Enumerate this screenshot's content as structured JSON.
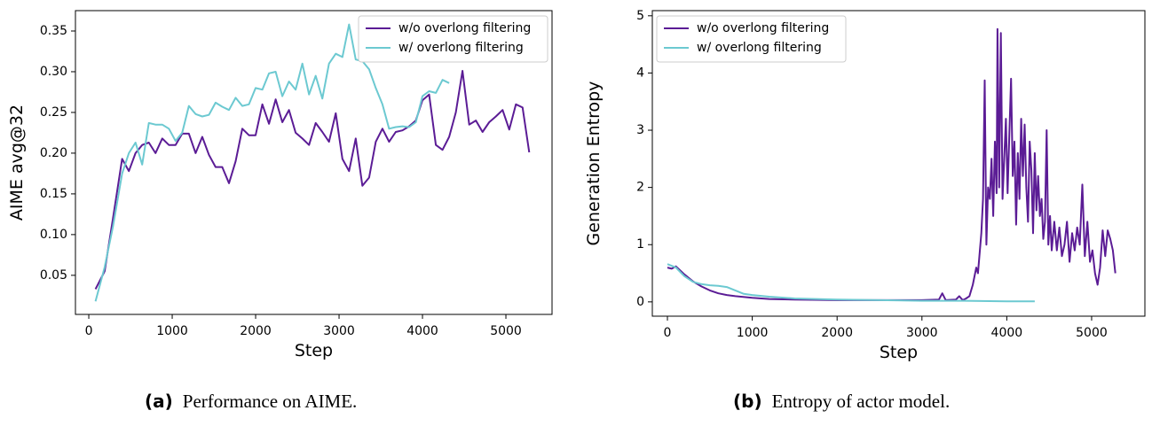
{
  "chart_data": [
    {
      "type": "line",
      "xlabel": "Step",
      "ylabel": "AIME avg@32",
      "caption_tag": "(a)",
      "caption": "Performance on AIME.",
      "xlim": [
        -160,
        5553
      ],
      "ylim": [
        0.002,
        0.375
      ],
      "xticks": [
        0,
        1000,
        2000,
        3000,
        4000,
        5000
      ],
      "yticks": [
        0.05,
        0.1,
        0.15,
        0.2,
        0.25,
        0.3,
        0.35
      ],
      "ytick_labels": [
        "0.05",
        "0.10",
        "0.15",
        "0.20",
        "0.25",
        "0.30",
        "0.35"
      ],
      "legend": "upper right",
      "series": [
        {
          "name": "w/o overlong filtering",
          "color": "#5b1c95",
          "x": [
            80,
            190,
            290,
            400,
            480,
            560,
            640,
            720,
            800,
            880,
            960,
            1040,
            1120,
            1200,
            1280,
            1360,
            1440,
            1520,
            1600,
            1680,
            1760,
            1840,
            1920,
            2000,
            2080,
            2160,
            2240,
            2320,
            2400,
            2480,
            2560,
            2640,
            2720,
            2800,
            2880,
            2960,
            3040,
            3120,
            3200,
            3280,
            3360,
            3440,
            3520,
            3600,
            3680,
            3760,
            3840,
            3920,
            4000,
            4080,
            4160,
            4240,
            4320,
            4400,
            4480,
            4560,
            4640,
            4720,
            4800,
            4880,
            4960,
            5040,
            5120,
            5200,
            5280
          ],
          "values": [
            0.033,
            0.055,
            0.12,
            0.193,
            0.178,
            0.2,
            0.21,
            0.213,
            0.2,
            0.218,
            0.21,
            0.21,
            0.224,
            0.224,
            0.2,
            0.22,
            0.198,
            0.183,
            0.183,
            0.163,
            0.19,
            0.23,
            0.222,
            0.222,
            0.26,
            0.236,
            0.266,
            0.238,
            0.253,
            0.225,
            0.218,
            0.21,
            0.237,
            0.226,
            0.214,
            0.249,
            0.193,
            0.178,
            0.218,
            0.16,
            0.17,
            0.214,
            0.23,
            0.214,
            0.226,
            0.228,
            0.233,
            0.24,
            0.265,
            0.272,
            0.21,
            0.204,
            0.22,
            0.25,
            0.301,
            0.235,
            0.24,
            0.226,
            0.238,
            0.245,
            0.253,
            0.229,
            0.26,
            0.256,
            0.201
          ]
        },
        {
          "name": "w/ overlong filtering",
          "color": "#6cc9d1",
          "x": [
            80,
            190,
            290,
            400,
            480,
            560,
            640,
            720,
            800,
            880,
            960,
            1040,
            1120,
            1200,
            1280,
            1360,
            1440,
            1520,
            1600,
            1680,
            1760,
            1840,
            1920,
            2000,
            2080,
            2160,
            2240,
            2320,
            2400,
            2480,
            2560,
            2640,
            2720,
            2800,
            2880,
            2960,
            3040,
            3120,
            3200,
            3280,
            3360,
            3440,
            3520,
            3600,
            3680,
            3760,
            3840,
            3920,
            4000,
            4080,
            4160,
            4240,
            4320
          ],
          "values": [
            0.018,
            0.06,
            0.11,
            0.175,
            0.2,
            0.213,
            0.186,
            0.237,
            0.235,
            0.235,
            0.23,
            0.215,
            0.225,
            0.258,
            0.248,
            0.245,
            0.247,
            0.262,
            0.257,
            0.253,
            0.268,
            0.258,
            0.26,
            0.28,
            0.278,
            0.298,
            0.3,
            0.27,
            0.288,
            0.278,
            0.31,
            0.272,
            0.295,
            0.267,
            0.31,
            0.322,
            0.318,
            0.358,
            0.315,
            0.313,
            0.303,
            0.28,
            0.26,
            0.23,
            0.232,
            0.233,
            0.232,
            0.238,
            0.27,
            0.276,
            0.274,
            0.29,
            0.286
          ]
        }
      ]
    },
    {
      "type": "line",
      "xlabel": "Step",
      "ylabel": "Generation Entropy",
      "caption_tag": "(b)",
      "caption": "Entropy of actor model.",
      "xlim": [
        -178,
        5628
      ],
      "ylim": [
        -0.25,
        5.09
      ],
      "xticks": [
        0,
        1000,
        2000,
        3000,
        4000,
        5000
      ],
      "yticks": [
        0,
        1,
        2,
        3,
        4,
        5
      ],
      "legend": "upper left",
      "series": [
        {
          "name": "w/o overlong filtering",
          "color": "#5b1c95",
          "x": [
            0,
            50,
            100,
            150,
            200,
            300,
            400,
            500,
            600,
            700,
            800,
            1000,
            1200,
            1500,
            2000,
            2500,
            3000,
            3200,
            3240,
            3280,
            3400,
            3440,
            3480,
            3520,
            3560,
            3600,
            3640,
            3660,
            3700,
            3720,
            3740,
            3760,
            3780,
            3800,
            3820,
            3840,
            3860,
            3880,
            3890,
            3910,
            3930,
            3950,
            3970,
            3990,
            4010,
            4030,
            4050,
            4070,
            4090,
            4110,
            4130,
            4150,
            4170,
            4190,
            4210,
            4230,
            4250,
            4270,
            4290,
            4310,
            4330,
            4350,
            4370,
            4390,
            4410,
            4430,
            4450,
            4470,
            4490,
            4510,
            4530,
            4560,
            4590,
            4620,
            4650,
            4680,
            4710,
            4740,
            4770,
            4800,
            4830,
            4860,
            4890,
            4920,
            4950,
            4980,
            5010,
            5040,
            5070,
            5100,
            5130,
            5160,
            5190,
            5220,
            5250,
            5280
          ],
          "values": [
            0.6,
            0.58,
            0.62,
            0.55,
            0.48,
            0.36,
            0.27,
            0.2,
            0.15,
            0.12,
            0.1,
            0.07,
            0.05,
            0.04,
            0.03,
            0.03,
            0.03,
            0.04,
            0.15,
            0.03,
            0.04,
            0.1,
            0.03,
            0.06,
            0.1,
            0.3,
            0.6,
            0.5,
            1.2,
            1.8,
            3.87,
            1.0,
            2.0,
            1.8,
            2.5,
            1.5,
            2.8,
            1.9,
            4.77,
            2.0,
            4.7,
            1.8,
            2.5,
            3.2,
            1.9,
            2.9,
            3.9,
            2.2,
            2.8,
            1.35,
            2.6,
            1.8,
            3.2,
            2.2,
            3.1,
            2.0,
            1.4,
            2.8,
            2.3,
            1.2,
            2.6,
            1.6,
            2.2,
            1.5,
            1.8,
            1.1,
            1.4,
            3.0,
            1.0,
            1.5,
            0.9,
            1.4,
            0.9,
            1.3,
            0.8,
            1.0,
            1.4,
            0.7,
            1.2,
            0.9,
            1.3,
            1.0,
            2.05,
            0.8,
            1.4,
            0.7,
            0.9,
            0.5,
            0.3,
            0.6,
            1.25,
            0.8,
            1.25,
            1.1,
            0.9,
            0.5
          ]
        },
        {
          "name": "w/ overlong filtering",
          "color": "#6cc9d1",
          "x": [
            0,
            100,
            200,
            300,
            400,
            500,
            600,
            700,
            800,
            900,
            1000,
            1200,
            1500,
            2000,
            2500,
            3000,
            3500,
            4000,
            4330
          ],
          "values": [
            0.66,
            0.6,
            0.45,
            0.35,
            0.31,
            0.29,
            0.28,
            0.26,
            0.2,
            0.14,
            0.12,
            0.09,
            0.06,
            0.04,
            0.03,
            0.02,
            0.02,
            0.01,
            0.01
          ]
        }
      ]
    }
  ]
}
